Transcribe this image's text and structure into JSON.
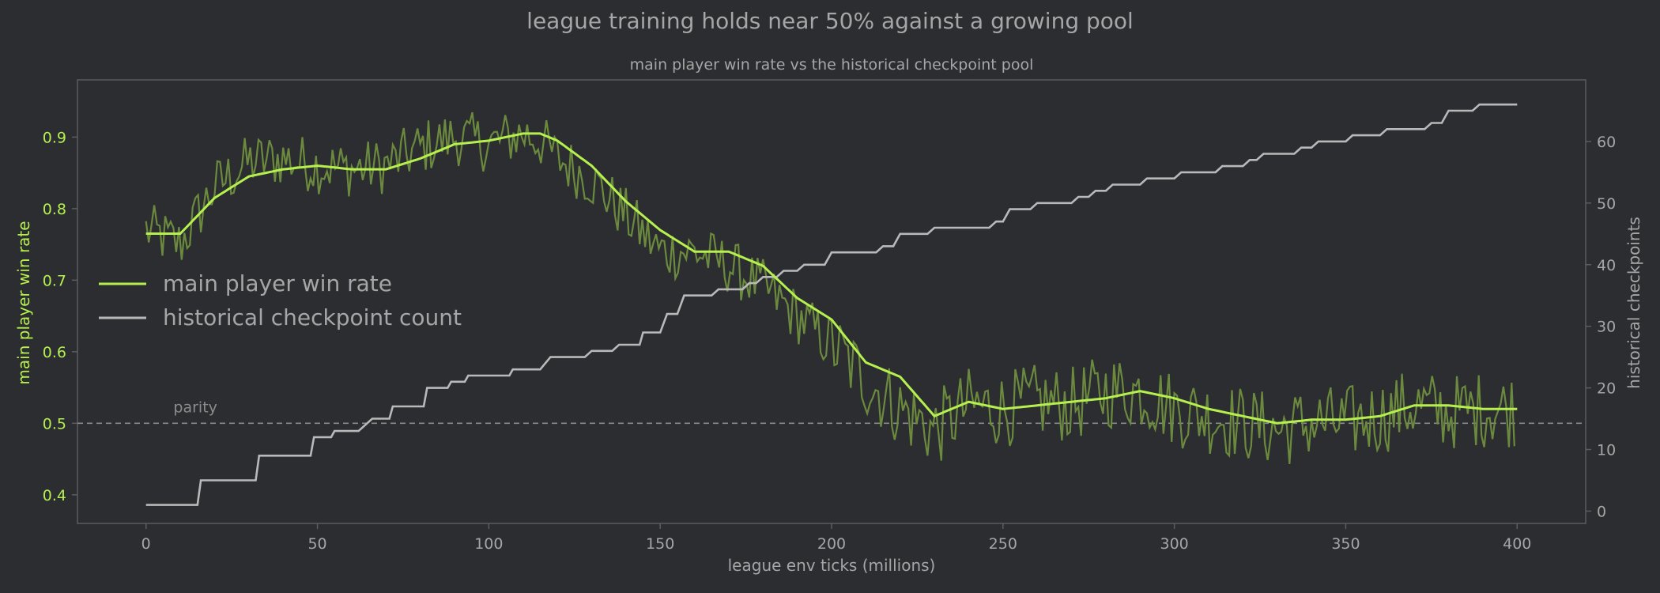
{
  "chart_data": {
    "type": "line",
    "title": "league training holds near 50% against a growing pool",
    "subtitle": "main player win rate vs the historical checkpoint pool",
    "xlabel": "league env ticks (millions)",
    "ylabel_left": "main player win rate",
    "ylabel_right": "historical checkpoints",
    "xlim": [
      -20,
      420
    ],
    "ylim_left": [
      0.36,
      0.98
    ],
    "ylim_right": [
      -2,
      70
    ],
    "x_ticks": [
      0,
      50,
      100,
      150,
      200,
      250,
      300,
      350,
      400
    ],
    "y_ticks_left": [
      0.4,
      0.5,
      0.6,
      0.7,
      0.8,
      0.9
    ],
    "y_ticks_right": [
      0,
      10,
      20,
      30,
      40,
      50,
      60
    ],
    "grid": false,
    "legend_placement": "center-left",
    "reference_line": {
      "y": 0.5,
      "label": "parity"
    },
    "colors": {
      "background": "#2c2d31",
      "raw_win_rate": "#6b8a3e",
      "smoothed_win_rate": "#b5f04f",
      "checkpoint_count": "#b9b9b9",
      "left_axis_text": "#b5f04f",
      "text": "#a6a6a6",
      "spine": "#5c5d61",
      "parity_line": "#8c8c8c"
    },
    "series": [
      {
        "name": "main player win rate",
        "axis": "left",
        "x": [
          0,
          10,
          20,
          30,
          40,
          50,
          60,
          70,
          80,
          90,
          100,
          110,
          115,
          120,
          130,
          140,
          150,
          160,
          170,
          180,
          190,
          200,
          210,
          220,
          230,
          240,
          250,
          260,
          270,
          280,
          290,
          300,
          310,
          320,
          330,
          340,
          350,
          360,
          370,
          380,
          390,
          400
        ],
        "values": [
          0.765,
          0.765,
          0.815,
          0.845,
          0.855,
          0.86,
          0.855,
          0.855,
          0.87,
          0.89,
          0.895,
          0.905,
          0.905,
          0.895,
          0.86,
          0.81,
          0.77,
          0.74,
          0.74,
          0.72,
          0.675,
          0.645,
          0.585,
          0.565,
          0.51,
          0.53,
          0.52,
          0.525,
          0.53,
          0.535,
          0.545,
          0.535,
          0.52,
          0.51,
          0.5,
          0.505,
          0.505,
          0.51,
          0.525,
          0.525,
          0.52,
          0.52
        ]
      },
      {
        "name": "historical checkpoint count",
        "axis": "right",
        "x": [
          0,
          15,
          16,
          32,
          33,
          48,
          49,
          54,
          55,
          62,
          64,
          66,
          71,
          72,
          81,
          82,
          88,
          89,
          93,
          94,
          106,
          107,
          115,
          118,
          128,
          130,
          136,
          138,
          144,
          145,
          150,
          152,
          155,
          157,
          165,
          167,
          174,
          176,
          178,
          180,
          184,
          186,
          190,
          192,
          198,
          200,
          213,
          215,
          218,
          220,
          228,
          230,
          246,
          248,
          250,
          252,
          258,
          260,
          270,
          272,
          275,
          277,
          280,
          282,
          290,
          292,
          300,
          302,
          312,
          314,
          320,
          322,
          324,
          326,
          335,
          337,
          340,
          342,
          350,
          352,
          360,
          362,
          373,
          375,
          378,
          380,
          387,
          389,
          400
        ],
        "values": [
          1,
          1,
          5,
          5,
          9,
          9,
          12,
          12,
          13,
          13,
          14,
          15,
          15,
          17,
          17,
          20,
          20,
          21,
          21,
          22,
          22,
          23,
          23,
          25,
          25,
          26,
          26,
          27,
          27,
          29,
          29,
          32,
          32,
          35,
          35,
          36,
          36,
          37,
          37,
          38,
          38,
          39,
          39,
          40,
          40,
          42,
          42,
          43,
          43,
          45,
          45,
          46,
          46,
          47,
          47,
          49,
          49,
          50,
          50,
          51,
          51,
          52,
          52,
          53,
          53,
          54,
          54,
          55,
          55,
          56,
          56,
          57,
          57,
          58,
          58,
          59,
          59,
          60,
          60,
          61,
          61,
          62,
          62,
          63,
          63,
          65,
          65,
          66,
          66
        ]
      }
    ],
    "raw_series": {
      "axis": "left",
      "x": [
        0,
        10,
        20,
        30,
        40,
        50,
        60,
        70,
        80,
        90,
        100,
        110,
        115,
        120,
        130,
        140,
        150,
        160,
        170,
        180,
        190,
        200,
        210,
        220,
        230,
        240,
        250,
        260,
        270,
        280,
        290,
        300,
        310,
        320,
        330,
        340,
        350,
        360,
        370,
        380,
        390,
        400
      ],
      "center": [
        0.77,
        0.75,
        0.83,
        0.865,
        0.87,
        0.86,
        0.855,
        0.86,
        0.885,
        0.9,
        0.89,
        0.905,
        0.895,
        0.87,
        0.84,
        0.79,
        0.74,
        0.74,
        0.72,
        0.69,
        0.65,
        0.61,
        0.56,
        0.52,
        0.49,
        0.525,
        0.52,
        0.53,
        0.525,
        0.545,
        0.545,
        0.52,
        0.51,
        0.5,
        0.49,
        0.5,
        0.5,
        0.51,
        0.525,
        0.515,
        0.52,
        0.52
      ],
      "amplitude": 0.04
    }
  }
}
